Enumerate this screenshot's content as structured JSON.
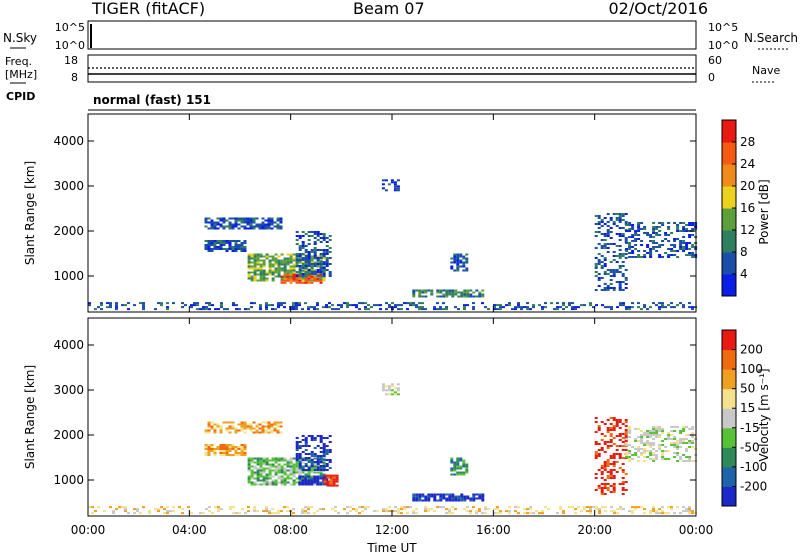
{
  "header": {
    "station": "TIGER (fitACF)",
    "beam": "Beam 07",
    "date": "02/Oct/2016"
  },
  "top_panels": {
    "nsky_label": "N.Sky",
    "nsky_ticks": [
      "10^5",
      "10^0"
    ],
    "nsearch_label": "N.Search",
    "nsearch_ticks": [
      "10^5",
      "10^0"
    ],
    "freq_label_1": "Freq.",
    "freq_label_2": "[MHz]",
    "freq_ticks": [
      "18",
      "8"
    ],
    "nave_label": "Nave",
    "nave_ticks": [
      "60",
      "0"
    ],
    "cpid_label": "CPID",
    "cpid_text": "normal (fast) 151"
  },
  "chart_data": [
    {
      "type": "heatmap",
      "name": "power",
      "xlabel": "",
      "ylabel": "Slant Range [km]",
      "xlim": [
        0,
        24
      ],
      "ylim": [
        200,
        4600
      ],
      "xticks": [
        "00:00",
        "04:00",
        "08:00",
        "12:00",
        "16:00",
        "20:00",
        "00:00"
      ],
      "yticks": [
        "1000",
        "2000",
        "3000",
        "4000"
      ],
      "colorbar": {
        "label": "Power [dB]",
        "tick_labels": [
          "4",
          "8",
          "12",
          "16",
          "20",
          "24",
          "28"
        ],
        "colors": [
          "#0a1ee6",
          "#1a4ea8",
          "#2f7e60",
          "#5ca03c",
          "#ecd21e",
          "#f08a1a",
          "#f45a10",
          "#e81a12"
        ]
      },
      "regions": [
        {
          "t0": 0.0,
          "t1": 24.0,
          "r0": 250,
          "r1": 420,
          "level": 1,
          "density": 0.35
        },
        {
          "t0": 4.6,
          "t1": 7.6,
          "r0": 2050,
          "r1": 2300,
          "level": 1,
          "density": 0.65
        },
        {
          "t0": 4.6,
          "t1": 6.2,
          "r0": 1550,
          "r1": 1800,
          "level": 1,
          "density": 0.8
        },
        {
          "t0": 6.3,
          "t1": 9.3,
          "r0": 900,
          "r1": 1500,
          "level": 3,
          "density": 0.75
        },
        {
          "t0": 7.6,
          "t1": 9.2,
          "r0": 850,
          "r1": 1050,
          "level": 6,
          "density": 0.8
        },
        {
          "t0": 8.2,
          "t1": 9.6,
          "r0": 1000,
          "r1": 2000,
          "level": 1,
          "density": 0.55
        },
        {
          "t0": 11.6,
          "t1": 12.2,
          "r0": 2900,
          "r1": 3150,
          "level": 1,
          "density": 0.6
        },
        {
          "t0": 12.8,
          "t1": 15.6,
          "r0": 550,
          "r1": 700,
          "level": 2,
          "density": 0.7
        },
        {
          "t0": 14.3,
          "t1": 14.9,
          "r0": 1100,
          "r1": 1500,
          "level": 1,
          "density": 0.6
        },
        {
          "t0": 20.0,
          "t1": 21.2,
          "r0": 700,
          "r1": 2400,
          "level": 1,
          "density": 0.35
        },
        {
          "t0": 21.2,
          "t1": 24.0,
          "r0": 1400,
          "r1": 2200,
          "level": 1,
          "density": 0.4
        }
      ]
    },
    {
      "type": "heatmap",
      "name": "velocity",
      "xlabel": "Time UT",
      "ylabel": "Slant Range [km]",
      "xlim": [
        0,
        24
      ],
      "ylim": [
        200,
        4600
      ],
      "xticks": [
        "00:00",
        "04:00",
        "08:00",
        "12:00",
        "16:00",
        "20:00",
        "00:00"
      ],
      "yticks": [
        "1000",
        "2000",
        "3000",
        "4000"
      ],
      "colorbar": {
        "label": "Velocity [m s⁻¹]",
        "tick_labels": [
          "200",
          "100",
          "50",
          "15",
          "-15",
          "-50",
          "-100",
          "-200"
        ],
        "colors": [
          "#1c28c8",
          "#1e64a8",
          "#2f8a5a",
          "#58c236",
          "#c8c8c8",
          "#f4e28a",
          "#f0a020",
          "#f06a10",
          "#e81a12"
        ]
      },
      "regions": [
        {
          "t0": 0.0,
          "t1": 24.0,
          "r0": 250,
          "r1": 420,
          "level": 5,
          "density": 0.35
        },
        {
          "t0": 4.6,
          "t1": 7.6,
          "r0": 2050,
          "r1": 2300,
          "level": 6,
          "density": 0.65
        },
        {
          "t0": 4.6,
          "t1": 6.2,
          "r0": 1550,
          "r1": 1800,
          "level": 6,
          "density": 0.8
        },
        {
          "t0": 6.3,
          "t1": 9.3,
          "r0": 900,
          "r1": 1500,
          "level": 3,
          "density": 0.75
        },
        {
          "t0": 8.3,
          "t1": 9.4,
          "r0": 900,
          "r1": 1100,
          "level": 0,
          "density": 0.8
        },
        {
          "t0": 9.3,
          "t1": 9.8,
          "r0": 880,
          "r1": 1120,
          "level": 8,
          "density": 0.9
        },
        {
          "t0": 8.2,
          "t1": 9.6,
          "r0": 1200,
          "r1": 2000,
          "level": 0,
          "density": 0.55
        },
        {
          "t0": 11.6,
          "t1": 12.2,
          "r0": 2900,
          "r1": 3150,
          "level": 4,
          "density": 0.6
        },
        {
          "t0": 12.8,
          "t1": 15.6,
          "r0": 550,
          "r1": 700,
          "level": 0,
          "density": 0.7
        },
        {
          "t0": 14.3,
          "t1": 14.9,
          "r0": 1100,
          "r1": 1500,
          "level": 2,
          "density": 0.6
        },
        {
          "t0": 20.0,
          "t1": 21.2,
          "r0": 700,
          "r1": 2400,
          "level": 8,
          "density": 0.35
        },
        {
          "t0": 21.2,
          "t1": 24.0,
          "r0": 1400,
          "r1": 2200,
          "level": 4,
          "density": 0.4
        }
      ]
    }
  ]
}
